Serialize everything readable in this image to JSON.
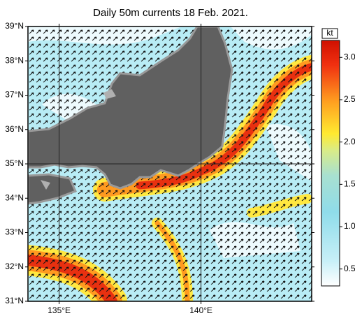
{
  "title": "Daily 50m currents 18 Feb. 2021.",
  "map": {
    "latlim": [
      31,
      39
    ],
    "lonlim": [
      133.9,
      143.9
    ],
    "grid_every": 5,
    "lat_ticks": [
      {
        "value": 31,
        "label": "31°N"
      },
      {
        "value": 32,
        "label": "32°N"
      },
      {
        "value": 33,
        "label": "33°N"
      },
      {
        "value": 34,
        "label": "34°N"
      },
      {
        "value": 35,
        "label": "35°N"
      },
      {
        "value": 36,
        "label": "36°N"
      },
      {
        "value": 37,
        "label": "37°N"
      },
      {
        "value": 38,
        "label": "38°N"
      },
      {
        "value": 39,
        "label": "39°N"
      }
    ],
    "lon_ticks": [
      {
        "value": 135,
        "label": "135°E"
      },
      {
        "value": 140,
        "label": "140°E"
      }
    ]
  },
  "colorbar": {
    "unit": "kt",
    "lim": [
      0.3,
      3.2
    ],
    "ticks": [
      {
        "value": 0.5,
        "label": "0.5"
      },
      {
        "value": 1,
        "label": "1.0"
      },
      {
        "value": 1.5,
        "label": "1.5"
      },
      {
        "value": 2,
        "label": "2.0"
      },
      {
        "value": 2.5,
        "label": "2.5"
      },
      {
        "value": 3,
        "label": "3.0"
      }
    ]
  }
}
